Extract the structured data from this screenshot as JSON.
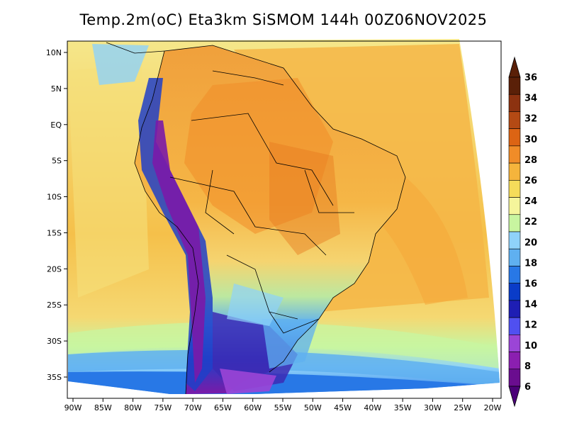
{
  "title": "Temp.2m(oC) Eta3km SiSMOM 144h 00Z06NOV2025",
  "map": {
    "lon_ticks": [
      "90W",
      "85W",
      "80W",
      "75W",
      "70W",
      "65W",
      "60W",
      "55W",
      "50W",
      "45W",
      "40W",
      "35W",
      "30W",
      "25W",
      "20W"
    ],
    "lat_ticks": [
      "10N",
      "5N",
      "EQ",
      "5S",
      "10S",
      "15S",
      "20S",
      "25S",
      "30S",
      "35S"
    ],
    "lon_range": [
      -90,
      -20
    ],
    "lat_range": [
      -38,
      11
    ]
  },
  "colorbar": {
    "labels": [
      "6",
      "8",
      "10",
      "12",
      "14",
      "16",
      "18",
      "20",
      "22",
      "24",
      "26",
      "28",
      "30",
      "32",
      "34",
      "36"
    ],
    "colors": [
      "#6a0d8f",
      "#8b1fb0",
      "#9b45d6",
      "#5050f0",
      "#1e1eb4",
      "#0a3cc8",
      "#2878e6",
      "#5fb0f0",
      "#8fd2fa",
      "#c8f5a0",
      "#f5f59b",
      "#f5dc5a",
      "#f5b43c",
      "#f08c28",
      "#dc6414",
      "#b44a14",
      "#8c3210",
      "#5a2008"
    ],
    "lower_arrow": "#4b0078",
    "upper_arrow": "#5a2008"
  }
}
